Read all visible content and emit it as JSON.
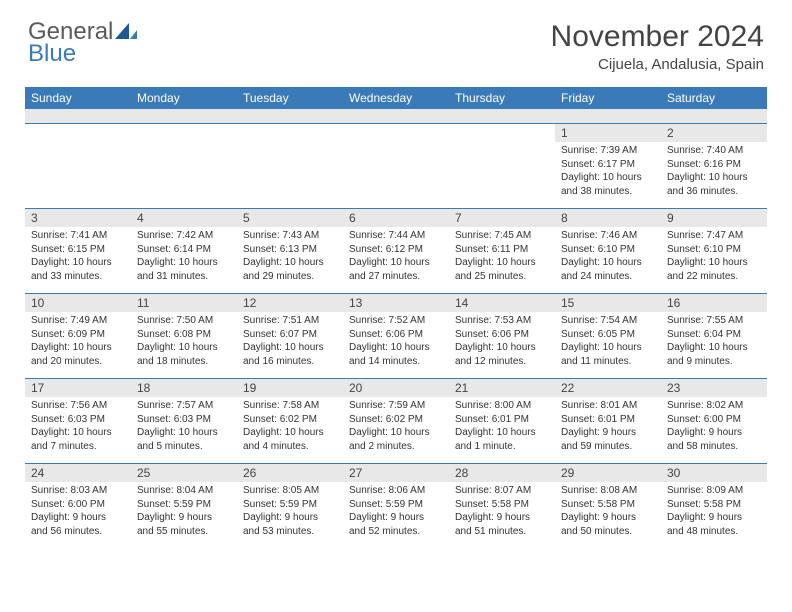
{
  "logo": {
    "word1": "General",
    "word2": "Blue"
  },
  "title": "November 2024",
  "location": "Cijuela, Andalusia, Spain",
  "colors": {
    "header_blue": "#3a7ab8",
    "gray_strip": "#e8e8e8",
    "text_dark": "#444444",
    "logo_gray": "#5a5a5a"
  },
  "dow": [
    "Sunday",
    "Monday",
    "Tuesday",
    "Wednesday",
    "Thursday",
    "Friday",
    "Saturday"
  ],
  "weeks": [
    [
      null,
      null,
      null,
      null,
      null,
      {
        "n": "1",
        "sr": "7:39 AM",
        "ss": "6:17 PM",
        "dl": "10 hours and 38 minutes."
      },
      {
        "n": "2",
        "sr": "7:40 AM",
        "ss": "6:16 PM",
        "dl": "10 hours and 36 minutes."
      }
    ],
    [
      {
        "n": "3",
        "sr": "7:41 AM",
        "ss": "6:15 PM",
        "dl": "10 hours and 33 minutes."
      },
      {
        "n": "4",
        "sr": "7:42 AM",
        "ss": "6:14 PM",
        "dl": "10 hours and 31 minutes."
      },
      {
        "n": "5",
        "sr": "7:43 AM",
        "ss": "6:13 PM",
        "dl": "10 hours and 29 minutes."
      },
      {
        "n": "6",
        "sr": "7:44 AM",
        "ss": "6:12 PM",
        "dl": "10 hours and 27 minutes."
      },
      {
        "n": "7",
        "sr": "7:45 AM",
        "ss": "6:11 PM",
        "dl": "10 hours and 25 minutes."
      },
      {
        "n": "8",
        "sr": "7:46 AM",
        "ss": "6:10 PM",
        "dl": "10 hours and 24 minutes."
      },
      {
        "n": "9",
        "sr": "7:47 AM",
        "ss": "6:10 PM",
        "dl": "10 hours and 22 minutes."
      }
    ],
    [
      {
        "n": "10",
        "sr": "7:49 AM",
        "ss": "6:09 PM",
        "dl": "10 hours and 20 minutes."
      },
      {
        "n": "11",
        "sr": "7:50 AM",
        "ss": "6:08 PM",
        "dl": "10 hours and 18 minutes."
      },
      {
        "n": "12",
        "sr": "7:51 AM",
        "ss": "6:07 PM",
        "dl": "10 hours and 16 minutes."
      },
      {
        "n": "13",
        "sr": "7:52 AM",
        "ss": "6:06 PM",
        "dl": "10 hours and 14 minutes."
      },
      {
        "n": "14",
        "sr": "7:53 AM",
        "ss": "6:06 PM",
        "dl": "10 hours and 12 minutes."
      },
      {
        "n": "15",
        "sr": "7:54 AM",
        "ss": "6:05 PM",
        "dl": "10 hours and 11 minutes."
      },
      {
        "n": "16",
        "sr": "7:55 AM",
        "ss": "6:04 PM",
        "dl": "10 hours and 9 minutes."
      }
    ],
    [
      {
        "n": "17",
        "sr": "7:56 AM",
        "ss": "6:03 PM",
        "dl": "10 hours and 7 minutes."
      },
      {
        "n": "18",
        "sr": "7:57 AM",
        "ss": "6:03 PM",
        "dl": "10 hours and 5 minutes."
      },
      {
        "n": "19",
        "sr": "7:58 AM",
        "ss": "6:02 PM",
        "dl": "10 hours and 4 minutes."
      },
      {
        "n": "20",
        "sr": "7:59 AM",
        "ss": "6:02 PM",
        "dl": "10 hours and 2 minutes."
      },
      {
        "n": "21",
        "sr": "8:00 AM",
        "ss": "6:01 PM",
        "dl": "10 hours and 1 minute."
      },
      {
        "n": "22",
        "sr": "8:01 AM",
        "ss": "6:01 PM",
        "dl": "9 hours and 59 minutes."
      },
      {
        "n": "23",
        "sr": "8:02 AM",
        "ss": "6:00 PM",
        "dl": "9 hours and 58 minutes."
      }
    ],
    [
      {
        "n": "24",
        "sr": "8:03 AM",
        "ss": "6:00 PM",
        "dl": "9 hours and 56 minutes."
      },
      {
        "n": "25",
        "sr": "8:04 AM",
        "ss": "5:59 PM",
        "dl": "9 hours and 55 minutes."
      },
      {
        "n": "26",
        "sr": "8:05 AM",
        "ss": "5:59 PM",
        "dl": "9 hours and 53 minutes."
      },
      {
        "n": "27",
        "sr": "8:06 AM",
        "ss": "5:59 PM",
        "dl": "9 hours and 52 minutes."
      },
      {
        "n": "28",
        "sr": "8:07 AM",
        "ss": "5:58 PM",
        "dl": "9 hours and 51 minutes."
      },
      {
        "n": "29",
        "sr": "8:08 AM",
        "ss": "5:58 PM",
        "dl": "9 hours and 50 minutes."
      },
      {
        "n": "30",
        "sr": "8:09 AM",
        "ss": "5:58 PM",
        "dl": "9 hours and 48 minutes."
      }
    ]
  ],
  "labels": {
    "sunrise": "Sunrise:",
    "sunset": "Sunset:",
    "daylight": "Daylight:"
  }
}
